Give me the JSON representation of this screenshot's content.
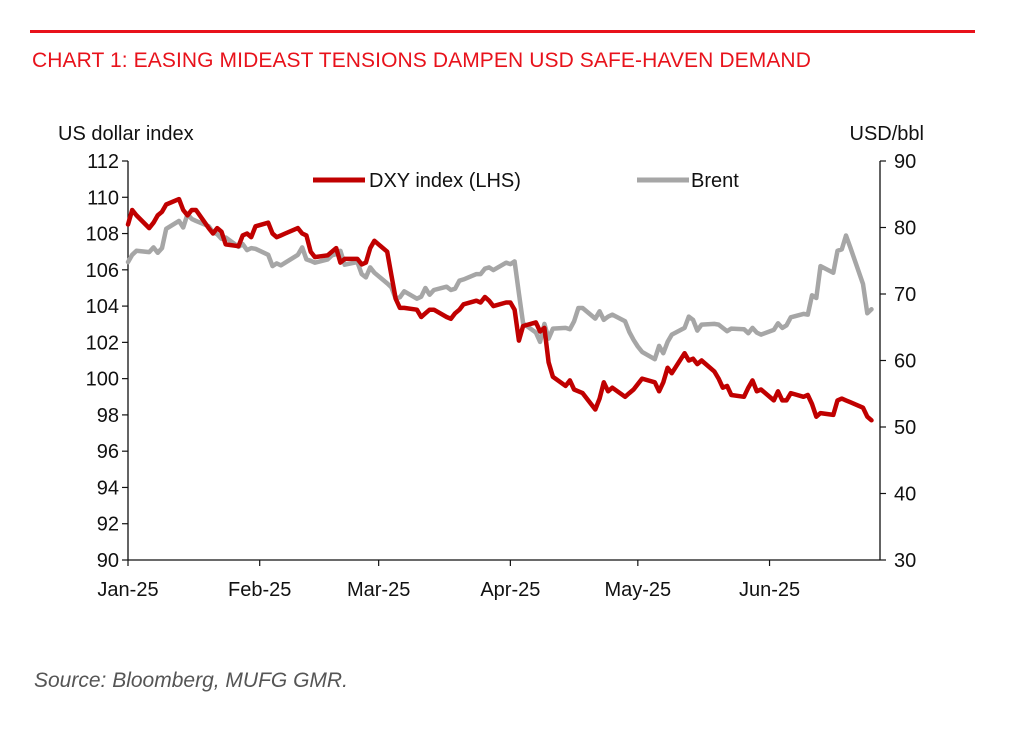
{
  "header": {
    "title": "CHART 1: EASING MIDEAST TENSIONS DAMPEN USD SAFE-HAVEN DEMAND"
  },
  "footer": {
    "source": "Source: Bloomberg, MUFG GMR."
  },
  "colors": {
    "title": "#e8121b",
    "dxy": "#c00000",
    "brent": "#a6a6a6",
    "axis": "#111111"
  },
  "chart_data": {
    "type": "line",
    "ylabel_left": "US dollar index",
    "ylabel_right": "USD/bbl",
    "ylim_left": [
      90,
      112
    ],
    "ylim_right": [
      30,
      90
    ],
    "yticks_left": [
      "112",
      "110",
      "108",
      "106",
      "104",
      "102",
      "100",
      "98",
      "96",
      "94",
      "92",
      "90"
    ],
    "yticks_right": [
      "90",
      "80",
      "70",
      "60",
      "50",
      "40",
      "30"
    ],
    "x_range": [
      "2025-01-01",
      "2025-06-27"
    ],
    "xticks": [
      {
        "date": "2025-01-01",
        "label": "Jan-25"
      },
      {
        "date": "2025-02-01",
        "label": "Feb-25"
      },
      {
        "date": "2025-03-01",
        "label": "Mar-25"
      },
      {
        "date": "2025-04-01",
        "label": "Apr-25"
      },
      {
        "date": "2025-05-01",
        "label": "May-25"
      },
      {
        "date": "2025-06-01",
        "label": "Jun-25"
      }
    ],
    "grid": false,
    "legend_position": "top-center",
    "series": [
      {
        "name": "DXY index (LHS)",
        "axis": "left",
        "points": [
          [
            "2025-01-01",
            108.5
          ],
          [
            "2025-01-02",
            109.3
          ],
          [
            "2025-01-03",
            109.0
          ],
          [
            "2025-01-06",
            108.3
          ],
          [
            "2025-01-07",
            108.6
          ],
          [
            "2025-01-08",
            109.0
          ],
          [
            "2025-01-09",
            109.2
          ],
          [
            "2025-01-10",
            109.6
          ],
          [
            "2025-01-13",
            109.9
          ],
          [
            "2025-01-14",
            109.3
          ],
          [
            "2025-01-15",
            109.0
          ],
          [
            "2025-01-16",
            109.3
          ],
          [
            "2025-01-17",
            109.3
          ],
          [
            "2025-01-20",
            108.3
          ],
          [
            "2025-01-21",
            108.0
          ],
          [
            "2025-01-22",
            108.3
          ],
          [
            "2025-01-23",
            108.1
          ],
          [
            "2025-01-24",
            107.4
          ],
          [
            "2025-01-27",
            107.3
          ],
          [
            "2025-01-28",
            107.9
          ],
          [
            "2025-01-29",
            108.0
          ],
          [
            "2025-01-30",
            107.8
          ],
          [
            "2025-01-31",
            108.4
          ],
          [
            "2025-02-03",
            108.6
          ],
          [
            "2025-02-04",
            108.0
          ],
          [
            "2025-02-05",
            107.8
          ],
          [
            "2025-02-06",
            107.9
          ],
          [
            "2025-02-07",
            108.0
          ],
          [
            "2025-02-10",
            108.3
          ],
          [
            "2025-02-11",
            108.0
          ],
          [
            "2025-02-12",
            107.9
          ],
          [
            "2025-02-13",
            107.0
          ],
          [
            "2025-02-14",
            106.7
          ],
          [
            "2025-02-17",
            106.8
          ],
          [
            "2025-02-18",
            107.0
          ],
          [
            "2025-02-19",
            107.2
          ],
          [
            "2025-02-20",
            106.4
          ],
          [
            "2025-02-21",
            106.6
          ],
          [
            "2025-02-24",
            106.6
          ],
          [
            "2025-02-25",
            106.3
          ],
          [
            "2025-02-26",
            106.4
          ],
          [
            "2025-02-27",
            107.2
          ],
          [
            "2025-02-28",
            107.6
          ],
          [
            "2025-03-03",
            107.0
          ],
          [
            "2025-03-04",
            105.7
          ],
          [
            "2025-03-05",
            104.4
          ],
          [
            "2025-03-06",
            103.9
          ],
          [
            "2025-03-07",
            103.9
          ],
          [
            "2025-03-10",
            103.8
          ],
          [
            "2025-03-11",
            103.4
          ],
          [
            "2025-03-12",
            103.6
          ],
          [
            "2025-03-13",
            103.8
          ],
          [
            "2025-03-14",
            103.8
          ],
          [
            "2025-03-17",
            103.4
          ],
          [
            "2025-03-18",
            103.3
          ],
          [
            "2025-03-19",
            103.6
          ],
          [
            "2025-03-20",
            103.8
          ],
          [
            "2025-03-21",
            104.1
          ],
          [
            "2025-03-24",
            104.3
          ],
          [
            "2025-03-25",
            104.2
          ],
          [
            "2025-03-26",
            104.5
          ],
          [
            "2025-03-27",
            104.3
          ],
          [
            "2025-03-28",
            104.0
          ],
          [
            "2025-03-31",
            104.2
          ],
          [
            "2025-04-01",
            104.2
          ],
          [
            "2025-04-02",
            103.8
          ],
          [
            "2025-04-03",
            102.1
          ],
          [
            "2025-04-04",
            102.9
          ],
          [
            "2025-04-07",
            103.1
          ],
          [
            "2025-04-08",
            102.6
          ],
          [
            "2025-04-09",
            102.8
          ],
          [
            "2025-04-10",
            100.9
          ],
          [
            "2025-04-11",
            100.1
          ],
          [
            "2025-04-14",
            99.6
          ],
          [
            "2025-04-15",
            99.9
          ],
          [
            "2025-04-16",
            99.4
          ],
          [
            "2025-04-17",
            99.3
          ],
          [
            "2025-04-18",
            99.2
          ],
          [
            "2025-04-21",
            98.3
          ],
          [
            "2025-04-22",
            98.9
          ],
          [
            "2025-04-23",
            99.8
          ],
          [
            "2025-04-24",
            99.3
          ],
          [
            "2025-04-25",
            99.5
          ],
          [
            "2025-04-28",
            99.0
          ],
          [
            "2025-04-29",
            99.2
          ],
          [
            "2025-04-30",
            99.4
          ],
          [
            "2025-05-01",
            99.7
          ],
          [
            "2025-05-02",
            100.0
          ],
          [
            "2025-05-05",
            99.8
          ],
          [
            "2025-05-06",
            99.3
          ],
          [
            "2025-05-07",
            99.8
          ],
          [
            "2025-05-08",
            100.6
          ],
          [
            "2025-05-09",
            100.3
          ],
          [
            "2025-05-12",
            101.4
          ],
          [
            "2025-05-13",
            101.0
          ],
          [
            "2025-05-14",
            101.1
          ],
          [
            "2025-05-15",
            100.8
          ],
          [
            "2025-05-16",
            101.0
          ],
          [
            "2025-05-19",
            100.4
          ],
          [
            "2025-05-20",
            100.0
          ],
          [
            "2025-05-21",
            99.5
          ],
          [
            "2025-05-22",
            99.6
          ],
          [
            "2025-05-23",
            99.1
          ],
          [
            "2025-05-26",
            99.0
          ],
          [
            "2025-05-27",
            99.5
          ],
          [
            "2025-05-28",
            99.9
          ],
          [
            "2025-05-29",
            99.3
          ],
          [
            "2025-05-30",
            99.4
          ],
          [
            "2025-06-02",
            98.8
          ],
          [
            "2025-06-03",
            99.3
          ],
          [
            "2025-06-04",
            98.8
          ],
          [
            "2025-06-05",
            98.8
          ],
          [
            "2025-06-06",
            99.2
          ],
          [
            "2025-06-09",
            99.0
          ],
          [
            "2025-06-10",
            99.1
          ],
          [
            "2025-06-11",
            98.6
          ],
          [
            "2025-06-12",
            97.9
          ],
          [
            "2025-06-13",
            98.1
          ],
          [
            "2025-06-16",
            98.0
          ],
          [
            "2025-06-17",
            98.8
          ],
          [
            "2025-06-18",
            98.9
          ],
          [
            "2025-06-19",
            98.8
          ],
          [
            "2025-06-20",
            98.7
          ],
          [
            "2025-06-23",
            98.4
          ],
          [
            "2025-06-24",
            97.9
          ],
          [
            "2025-06-25",
            97.7
          ]
        ]
      },
      {
        "name": "Brent",
        "axis": "right",
        "points": [
          [
            "2025-01-01",
            74.8
          ],
          [
            "2025-01-02",
            75.9
          ],
          [
            "2025-01-03",
            76.5
          ],
          [
            "2025-01-06",
            76.3
          ],
          [
            "2025-01-07",
            77.0
          ],
          [
            "2025-01-08",
            76.2
          ],
          [
            "2025-01-09",
            76.9
          ],
          [
            "2025-01-10",
            79.8
          ],
          [
            "2025-01-13",
            81.0
          ],
          [
            "2025-01-14",
            80.0
          ],
          [
            "2025-01-15",
            82.0
          ],
          [
            "2025-01-16",
            81.3
          ],
          [
            "2025-01-17",
            81.0
          ],
          [
            "2025-01-20",
            80.2
          ],
          [
            "2025-01-21",
            79.3
          ],
          [
            "2025-01-22",
            79.0
          ],
          [
            "2025-01-23",
            78.3
          ],
          [
            "2025-01-24",
            78.5
          ],
          [
            "2025-01-27",
            77.1
          ],
          [
            "2025-01-28",
            77.5
          ],
          [
            "2025-01-29",
            76.6
          ],
          [
            "2025-01-30",
            76.9
          ],
          [
            "2025-01-31",
            76.8
          ],
          [
            "2025-02-03",
            75.9
          ],
          [
            "2025-02-04",
            74.2
          ],
          [
            "2025-02-05",
            74.6
          ],
          [
            "2025-02-06",
            74.3
          ],
          [
            "2025-02-07",
            74.7
          ],
          [
            "2025-02-10",
            75.9
          ],
          [
            "2025-02-11",
            77.0
          ],
          [
            "2025-02-12",
            75.2
          ],
          [
            "2025-02-13",
            75.0
          ],
          [
            "2025-02-14",
            74.7
          ],
          [
            "2025-02-17",
            75.2
          ],
          [
            "2025-02-18",
            75.8
          ],
          [
            "2025-02-19",
            76.0
          ],
          [
            "2025-02-20",
            76.5
          ],
          [
            "2025-02-21",
            74.4
          ],
          [
            "2025-02-24",
            74.8
          ],
          [
            "2025-02-25",
            73.0
          ],
          [
            "2025-02-26",
            72.5
          ],
          [
            "2025-02-27",
            74.0
          ],
          [
            "2025-02-28",
            73.2
          ],
          [
            "2025-03-03",
            71.6
          ],
          [
            "2025-03-04",
            71.0
          ],
          [
            "2025-03-05",
            69.3
          ],
          [
            "2025-03-06",
            69.5
          ],
          [
            "2025-03-07",
            70.4
          ],
          [
            "2025-03-10",
            69.3
          ],
          [
            "2025-03-11",
            69.6
          ],
          [
            "2025-03-12",
            70.9
          ],
          [
            "2025-03-13",
            69.9
          ],
          [
            "2025-03-14",
            70.6
          ],
          [
            "2025-03-17",
            71.1
          ],
          [
            "2025-03-18",
            70.6
          ],
          [
            "2025-03-19",
            70.8
          ],
          [
            "2025-03-20",
            72.0
          ],
          [
            "2025-03-21",
            72.2
          ],
          [
            "2025-03-24",
            73.0
          ],
          [
            "2025-03-25",
            73.0
          ],
          [
            "2025-03-26",
            73.8
          ],
          [
            "2025-03-27",
            74.0
          ],
          [
            "2025-03-28",
            73.6
          ],
          [
            "2025-03-31",
            74.7
          ],
          [
            "2025-04-01",
            74.5
          ],
          [
            "2025-04-02",
            74.9
          ],
          [
            "2025-04-03",
            70.1
          ],
          [
            "2025-04-04",
            65.6
          ],
          [
            "2025-04-07",
            64.2
          ],
          [
            "2025-04-08",
            62.8
          ],
          [
            "2025-04-09",
            65.5
          ],
          [
            "2025-04-10",
            63.3
          ],
          [
            "2025-04-11",
            64.8
          ],
          [
            "2025-04-14",
            64.9
          ],
          [
            "2025-04-15",
            64.7
          ],
          [
            "2025-04-16",
            65.9
          ],
          [
            "2025-04-17",
            67.9
          ],
          [
            "2025-04-18",
            67.9
          ],
          [
            "2025-04-21",
            66.3
          ],
          [
            "2025-04-22",
            67.4
          ],
          [
            "2025-04-23",
            66.1
          ],
          [
            "2025-04-24",
            66.6
          ],
          [
            "2025-04-25",
            66.9
          ],
          [
            "2025-04-28",
            65.9
          ],
          [
            "2025-04-29",
            64.3
          ],
          [
            "2025-04-30",
            63.1
          ],
          [
            "2025-05-01",
            62.1
          ],
          [
            "2025-05-02",
            61.3
          ],
          [
            "2025-05-05",
            60.2
          ],
          [
            "2025-05-06",
            62.2
          ],
          [
            "2025-05-07",
            61.1
          ],
          [
            "2025-05-08",
            62.8
          ],
          [
            "2025-05-09",
            63.9
          ],
          [
            "2025-05-12",
            64.9
          ],
          [
            "2025-05-13",
            66.6
          ],
          [
            "2025-05-14",
            66.1
          ],
          [
            "2025-05-15",
            64.5
          ],
          [
            "2025-05-16",
            65.4
          ],
          [
            "2025-05-19",
            65.5
          ],
          [
            "2025-05-20",
            65.4
          ],
          [
            "2025-05-21",
            64.9
          ],
          [
            "2025-05-22",
            64.4
          ],
          [
            "2025-05-23",
            64.8
          ],
          [
            "2025-05-26",
            64.7
          ],
          [
            "2025-05-27",
            64.1
          ],
          [
            "2025-05-28",
            64.9
          ],
          [
            "2025-05-29",
            64.2
          ],
          [
            "2025-05-30",
            63.9
          ],
          [
            "2025-06-02",
            64.6
          ],
          [
            "2025-06-03",
            65.6
          ],
          [
            "2025-06-04",
            64.9
          ],
          [
            "2025-06-05",
            65.3
          ],
          [
            "2025-06-06",
            66.5
          ],
          [
            "2025-06-09",
            67.0
          ],
          [
            "2025-06-10",
            66.9
          ],
          [
            "2025-06-11",
            69.8
          ],
          [
            "2025-06-12",
            69.4
          ],
          [
            "2025-06-13",
            74.2
          ],
          [
            "2025-06-16",
            73.2
          ],
          [
            "2025-06-17",
            76.5
          ],
          [
            "2025-06-18",
            76.7
          ],
          [
            "2025-06-19",
            78.8
          ],
          [
            "2025-06-20",
            77.0
          ],
          [
            "2025-06-23",
            71.5
          ],
          [
            "2025-06-24",
            67.1
          ],
          [
            "2025-06-25",
            67.7
          ]
        ]
      }
    ]
  }
}
